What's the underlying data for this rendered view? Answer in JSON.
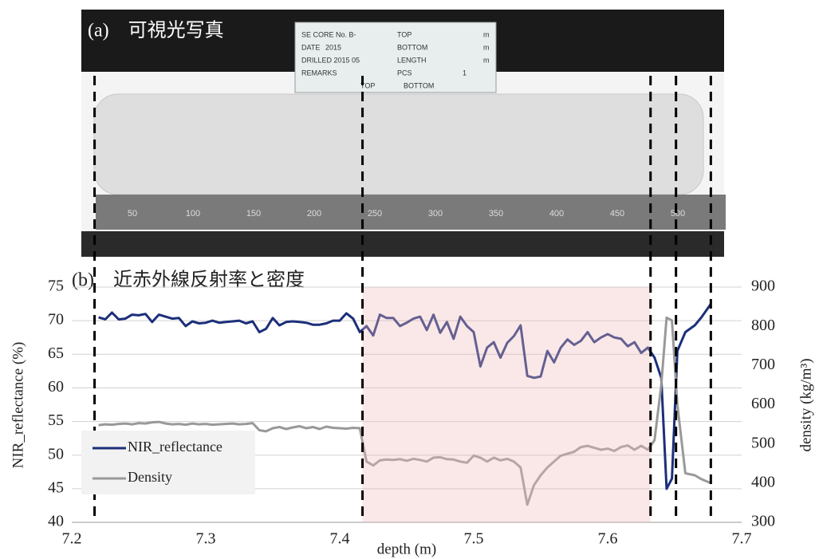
{
  "photo": {
    "title": "(a)　可視光写真",
    "card": [
      "SE CORE No. B-",
      "TOP",
      "m",
      "DATE",
      "2015",
      "BOTTOM",
      "m",
      "DRILLED 2015 05",
      "LENGTH",
      "m",
      "REMARKS",
      "PCS",
      "1",
      "TOP",
      "BOTTOM"
    ],
    "ruler": [
      50,
      100,
      150,
      200,
      250,
      300,
      350,
      400,
      450,
      500
    ]
  },
  "chart_data": {
    "type": "line",
    "title": "(b)　近赤外線反射率と密度",
    "x_label": "depth (m)",
    "y_label": "NIR_reflectance (%)",
    "y2_label": "density (kg/m³)",
    "x": [
      7.22,
      7.225,
      7.23,
      7.235,
      7.24,
      7.245,
      7.25,
      7.255,
      7.26,
      7.265,
      7.27,
      7.275,
      7.28,
      7.285,
      7.29,
      7.295,
      7.3,
      7.305,
      7.31,
      7.315,
      7.32,
      7.325,
      7.33,
      7.335,
      7.34,
      7.345,
      7.35,
      7.355,
      7.36,
      7.365,
      7.37,
      7.375,
      7.38,
      7.385,
      7.39,
      7.395,
      7.4,
      7.405,
      7.41,
      7.415,
      7.42,
      7.425,
      7.43,
      7.435,
      7.44,
      7.445,
      7.45,
      7.455,
      7.46,
      7.465,
      7.47,
      7.475,
      7.48,
      7.485,
      7.49,
      7.495,
      7.5,
      7.505,
      7.51,
      7.515,
      7.52,
      7.525,
      7.53,
      7.535,
      7.54,
      7.545,
      7.55,
      7.555,
      7.56,
      7.565,
      7.57,
      7.575,
      7.58,
      7.585,
      7.59,
      7.595,
      7.6,
      7.605,
      7.61,
      7.615,
      7.62,
      7.625,
      7.63,
      7.635,
      7.64,
      7.644,
      7.648,
      7.652,
      7.658,
      7.665,
      7.67,
      7.677
    ],
    "series": [
      {
        "name": "NIR_reflectance",
        "color": "#1b2f7a",
        "values": [
          70.5,
          70.2,
          71.2,
          70.2,
          70.3,
          70.9,
          70.8,
          71,
          69.8,
          70.9,
          70.6,
          70.3,
          70.4,
          69.2,
          69.9,
          69.6,
          69.7,
          70,
          69.7,
          69.8,
          69.9,
          70,
          69.6,
          69.9,
          68.3,
          68.8,
          70.4,
          69.3,
          69.8,
          69.9,
          69.8,
          69.7,
          69.4,
          69.4,
          69.6,
          70,
          70,
          71.1,
          70.3,
          68.3,
          69.2,
          67.8,
          70.9,
          70.4,
          70.4,
          69.2,
          69.7,
          70.3,
          70.6,
          68.6,
          70.9,
          68.2,
          69.8,
          67.3,
          70.6,
          69.2,
          68.3,
          63.2,
          66,
          66.8,
          64.5,
          66.7,
          67.7,
          69.3,
          61.8,
          61.5,
          61.7,
          65.5,
          63.8,
          66,
          67.2,
          66.4,
          67,
          68.3,
          66.8,
          67.5,
          68,
          67.5,
          67.3,
          66.2,
          66.8,
          65.2,
          66,
          64.5,
          61.5,
          45,
          46.5,
          65.5,
          68.3,
          69.3,
          70.5,
          72.5
        ]
      },
      {
        "name": "Density",
        "color": "#999999",
        "axis": "y2",
        "values": [
          548,
          550,
          549,
          551,
          552,
          550,
          553,
          552,
          555,
          556,
          552,
          550,
          551,
          549,
          552,
          550,
          551,
          549,
          550,
          551,
          552,
          550,
          551,
          553,
          535,
          532,
          540,
          543,
          538,
          542,
          545,
          540,
          543,
          538,
          544,
          541,
          540,
          539,
          541,
          540,
          455,
          445,
          458,
          460,
          459,
          461,
          457,
          462,
          459,
          455,
          465,
          466,
          461,
          460,
          455,
          452,
          470,
          465,
          455,
          465,
          458,
          462,
          455,
          440,
          345,
          395,
          420,
          440,
          455,
          470,
          475,
          480,
          492,
          495,
          490,
          485,
          488,
          482,
          492,
          496,
          485,
          495,
          485,
          510,
          650,
          822,
          815,
          600,
          425,
          420,
          410,
          400
        ]
      }
    ],
    "xlim": [
      7.2,
      7.7
    ],
    "xticks": [
      7.2,
      7.3,
      7.4,
      7.5,
      7.6,
      7.7
    ],
    "ylim": [
      40,
      75
    ],
    "yticks": [
      40,
      45,
      50,
      55,
      60,
      65,
      70,
      75
    ],
    "y2lim": [
      300,
      900
    ],
    "y2ticks": [
      300,
      400,
      500,
      600,
      700,
      800,
      900
    ],
    "grid": true,
    "legend": "lower left",
    "markers": [
      7.217,
      7.417,
      7.632,
      7.651,
      7.677
    ],
    "shaded": [
      7.417,
      7.632
    ]
  }
}
